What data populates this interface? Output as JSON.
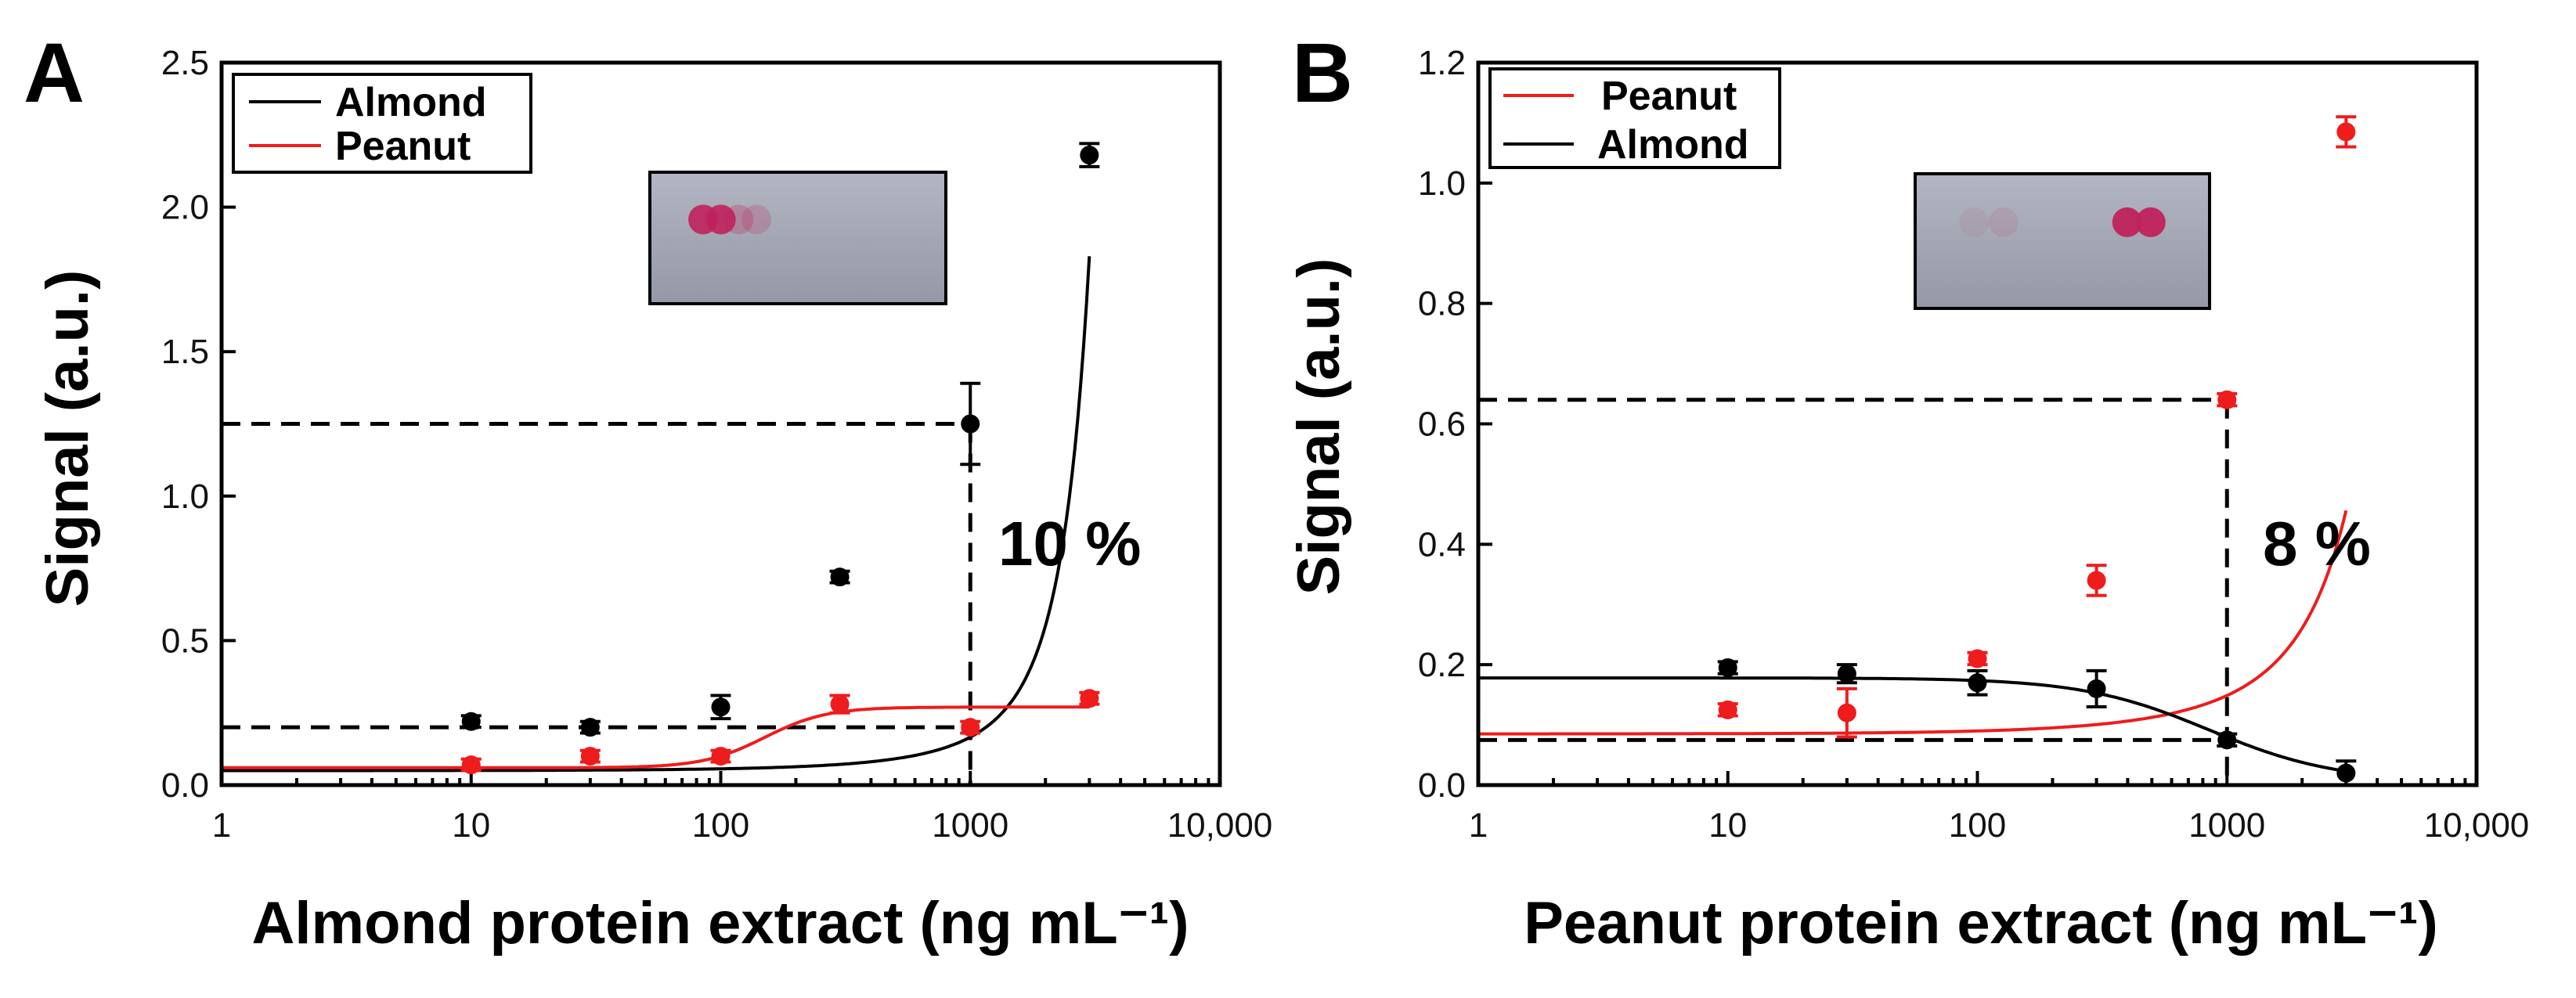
{
  "chart_data": [
    {
      "type": "scatter",
      "panel": "A",
      "xscale": "log",
      "xlim": [
        1,
        10000
      ],
      "ylim": [
        0,
        2.5
      ],
      "xticks": [
        1,
        10,
        100,
        1000,
        10000
      ],
      "xtick_labels": [
        "1",
        "10",
        "100",
        "1000",
        "10,000"
      ],
      "yticks": [
        0,
        0.5,
        1.0,
        1.5,
        2.0,
        2.5
      ],
      "ytick_labels": [
        "0.0",
        "0.5",
        "1.0",
        "1.5",
        "2.0",
        "2.5"
      ],
      "xlabel": "Almond protein extract (ng mL⁻¹)",
      "ylabel": "Signal (a.u.)",
      "legend": [
        "Almond",
        "Peanut"
      ],
      "legend_position": "top-left",
      "series": [
        {
          "name": "Almond",
          "color": "#000000",
          "x": [
            10,
            30,
            100,
            300,
            1000,
            3000
          ],
          "y": [
            0.22,
            0.2,
            0.27,
            0.72,
            1.25,
            2.18
          ],
          "err": [
            0.02,
            0.02,
            0.04,
            0.02,
            0.14,
            0.04
          ],
          "fit": {
            "kind": "exp",
            "a": 0.05,
            "b": 0.0012
          }
        },
        {
          "name": "Peanut",
          "color": "#ee1c1c",
          "x": [
            10,
            30,
            100,
            300,
            1000,
            3000
          ],
          "y": [
            0.07,
            0.1,
            0.1,
            0.28,
            0.2,
            0.3
          ],
          "err": [
            0.02,
            0.02,
            0.02,
            0.03,
            0.02,
            0.02
          ],
          "fit": {
            "kind": "sigmoid",
            "bottom": 0.06,
            "top": 0.27,
            "x0": 150,
            "slope": 3.5
          }
        }
      ],
      "reference": {
        "x": 1000,
        "y_high": 1.25,
        "y_low": 0.2,
        "label": "10 %"
      },
      "inset": {
        "type": "test-strip",
        "dots": "left-pair-dark"
      }
    },
    {
      "type": "scatter",
      "panel": "B",
      "xscale": "log",
      "xlim": [
        1,
        10000
      ],
      "ylim": [
        0,
        1.2
      ],
      "xticks": [
        1,
        10,
        100,
        1000,
        10000
      ],
      "xtick_labels": [
        "1",
        "10",
        "100",
        "1000",
        "10,000"
      ],
      "yticks": [
        0,
        0.2,
        0.4,
        0.6,
        0.8,
        1.0,
        1.2
      ],
      "ytick_labels": [
        "0.0",
        "0.2",
        "0.4",
        "0.6",
        "0.8",
        "1.0",
        "1.2"
      ],
      "xlabel": "Peanut protein extract (ng mL⁻¹)",
      "ylabel": "Signal (a.u.)",
      "legend": [
        "Peanut",
        "Almond"
      ],
      "legend_position": "top-left",
      "series": [
        {
          "name": "Peanut",
          "color": "#ee1c1c",
          "x": [
            10,
            30,
            100,
            300,
            1000,
            3000
          ],
          "y": [
            0.125,
            0.12,
            0.21,
            0.34,
            0.64,
            1.085
          ],
          "err": [
            0.01,
            0.04,
            0.01,
            0.025,
            0.01,
            0.025
          ],
          "fit": {
            "kind": "exp",
            "a": 0.085,
            "b": 0.00056
          }
        },
        {
          "name": "Almond",
          "color": "#000000",
          "x": [
            10,
            30,
            100,
            300,
            1000,
            3000
          ],
          "y": [
            0.195,
            0.185,
            0.17,
            0.16,
            0.075,
            0.02
          ],
          "err": [
            0.01,
            0.015,
            0.02,
            0.03,
            0.01,
            0.02
          ],
          "fit": {
            "kind": "sigmoid",
            "bottom": 0.005,
            "top": 0.178,
            "x0": 850,
            "slope": -1.7
          }
        }
      ],
      "reference": {
        "x": 1000,
        "y_high": 0.64,
        "y_low": 0.075,
        "label": "8 %"
      },
      "inset": {
        "type": "test-strip",
        "dots": "right-pair-dark"
      }
    }
  ],
  "panels": {
    "a": {
      "letter": "A",
      "legend": [
        "Almond",
        "Peanut"
      ],
      "xlabel": "Almond protein extract (ng mL⁻¹)",
      "ylabel": "Signal (a.u.)",
      "percent": "10 %"
    },
    "b": {
      "letter": "B",
      "legend": [
        "Peanut",
        "Almond"
      ],
      "xlabel": "Peanut protein extract (ng mL⁻¹)",
      "ylabel": "Signal (a.u.)",
      "percent": "8 %"
    }
  },
  "colors": {
    "black": "#000000",
    "red": "#ee1c1c",
    "strip": "#9ea3b0",
    "dot": "#c0225a"
  }
}
